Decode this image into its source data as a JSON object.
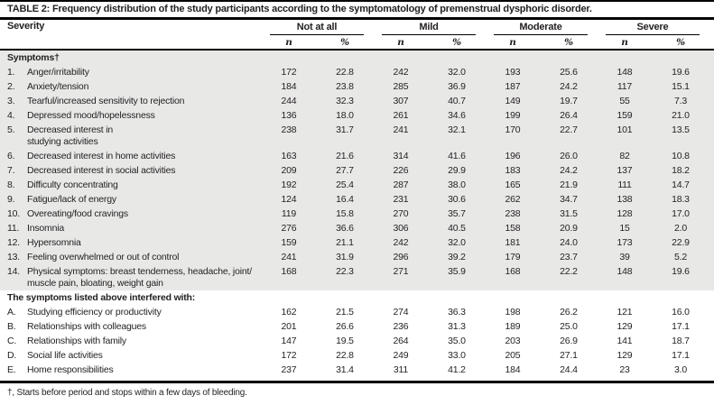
{
  "table": {
    "title": "TABLE 2: Frequency distribution of the study participants according to the symptomatology of premenstrual dysphoric disorder.",
    "severity_label": "Severity",
    "groups": [
      {
        "label": "Not at all"
      },
      {
        "label": "Mild"
      },
      {
        "label": "Moderate"
      },
      {
        "label": "Severe"
      }
    ],
    "subheaders": {
      "n": "n",
      "pct": "%"
    },
    "sections": [
      {
        "heading": "Symptoms†",
        "rows": [
          {
            "num": "1.",
            "label": "Anger/irritability",
            "values": [
              "172",
              "22.8",
              "242",
              "32.0",
              "193",
              "25.6",
              "148",
              "19.6"
            ]
          },
          {
            "num": "2.",
            "label": "Anxiety/tension",
            "values": [
              "184",
              "23.8",
              "285",
              "36.9",
              "187",
              "24.2",
              "117",
              "15.1"
            ]
          },
          {
            "num": "3.",
            "label": "Tearful/increased sensitivity to rejection",
            "values": [
              "244",
              "32.3",
              "307",
              "40.7",
              "149",
              "19.7",
              "55",
              "7.3"
            ]
          },
          {
            "num": "4.",
            "label": "Depressed mood/hopelessness",
            "values": [
              "136",
              "18.0",
              "261",
              "34.6",
              "199",
              "26.4",
              "159",
              "21.0"
            ]
          },
          {
            "num": "5.",
            "label": "Decreased interest in\nstudying activities",
            "values": [
              "238",
              "31.7",
              "241",
              "32.1",
              "170",
              "22.7",
              "101",
              "13.5"
            ]
          },
          {
            "num": "6.",
            "label": "Decreased interest in home activities",
            "values": [
              "163",
              "21.6",
              "314",
              "41.6",
              "196",
              "26.0",
              "82",
              "10.8"
            ]
          },
          {
            "num": "7.",
            "label": "Decreased interest in social activities",
            "values": [
              "209",
              "27.7",
              "226",
              "29.9",
              "183",
              "24.2",
              "137",
              "18.2"
            ]
          },
          {
            "num": "8.",
            "label": "Difficulty concentrating",
            "values": [
              "192",
              "25.4",
              "287",
              "38.0",
              "165",
              "21.9",
              "111",
              "14.7"
            ]
          },
          {
            "num": "9.",
            "label": "Fatigue/lack of energy",
            "values": [
              "124",
              "16.4",
              "231",
              "30.6",
              "262",
              "34.7",
              "138",
              "18.3"
            ]
          },
          {
            "num": "10.",
            "label": "Overeating/food cravings",
            "values": [
              "119",
              "15.8",
              "270",
              "35.7",
              "238",
              "31.5",
              "128",
              "17.0"
            ]
          },
          {
            "num": "11.",
            "label": "Insomnia",
            "values": [
              "276",
              "36.6",
              "306",
              "40.5",
              "158",
              "20.9",
              "15",
              "2.0"
            ]
          },
          {
            "num": "12.",
            "label": "Hypersomnia",
            "values": [
              "159",
              "21.1",
              "242",
              "32.0",
              "181",
              "24.0",
              "173",
              "22.9"
            ]
          },
          {
            "num": "13.",
            "label": "Feeling overwhelmed or out of control",
            "values": [
              "241",
              "31.9",
              "296",
              "39.2",
              "179",
              "23.7",
              "39",
              "5.2"
            ]
          },
          {
            "num": "14.",
            "label": "Physical symptoms: breast tenderness, headache, joint/\nmuscle pain, bloating, weight gain",
            "values": [
              "168",
              "22.3",
              "271",
              "35.9",
              "168",
              "22.2",
              "148",
              "19.6"
            ]
          }
        ]
      },
      {
        "heading": "The symptoms listed above interfered with:",
        "rows": [
          {
            "num": "A.",
            "label": "Studying efficiency or productivity",
            "values": [
              "162",
              "21.5",
              "274",
              "36.3",
              "198",
              "26.2",
              "121",
              "16.0"
            ]
          },
          {
            "num": "B.",
            "label": "Relationships with colleagues",
            "values": [
              "201",
              "26.6",
              "236",
              "31.3",
              "189",
              "25.0",
              "129",
              "17.1"
            ]
          },
          {
            "num": "C.",
            "label": "Relationships with family",
            "values": [
              "147",
              "19.5",
              "264",
              "35.0",
              "203",
              "26.9",
              "141",
              "18.7"
            ]
          },
          {
            "num": "D.",
            "label": "Social life activities",
            "values": [
              "172",
              "22.8",
              "249",
              "33.0",
              "205",
              "27.1",
              "129",
              "17.1"
            ]
          },
          {
            "num": "E.",
            "label": "Home responsibilities",
            "values": [
              "237",
              "31.4",
              "311",
              "41.2",
              "184",
              "24.4",
              "23",
              "3.0"
            ]
          }
        ]
      }
    ],
    "footnote": "†, Starts before period and stops within a few days of bleeding.",
    "colors": {
      "section_shade": "#e8e8e7",
      "rule": "#000000",
      "text": "#231f20"
    }
  }
}
